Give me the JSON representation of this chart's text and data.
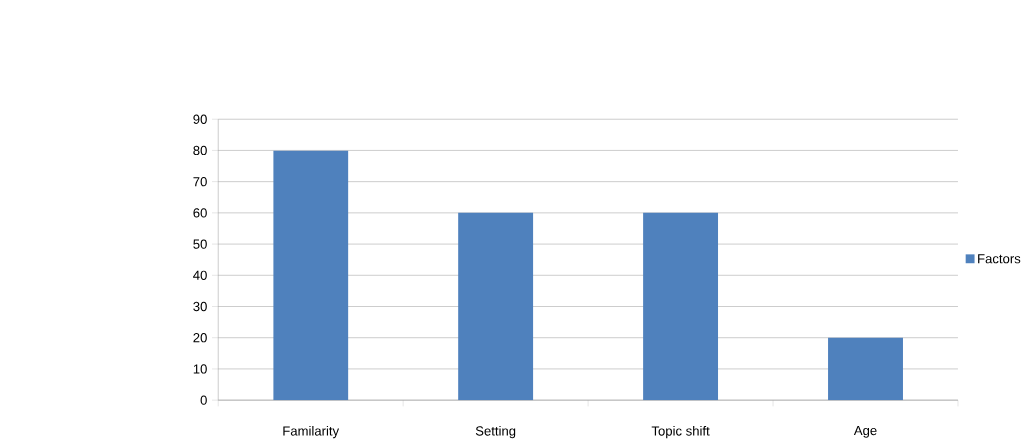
{
  "chart_data": {
    "type": "bar",
    "categories": [
      "Familarity",
      "Setting",
      "Topic shift",
      "Age"
    ],
    "series": [
      {
        "name": "Factors",
        "color": "#4f81bd",
        "values": [
          80,
          60,
          60,
          20
        ]
      }
    ],
    "ylim": [
      0,
      90
    ],
    "yticks": [
      0,
      10,
      20,
      30,
      40,
      50,
      60,
      70,
      80,
      90
    ],
    "grid": "y",
    "legend": "right"
  }
}
